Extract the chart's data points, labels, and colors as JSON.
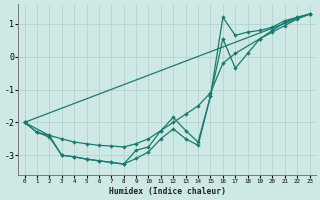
{
  "xlabel": "Humidex (Indice chaleur)",
  "bg_color": "#cde8e5",
  "grid_color": "#afd0cc",
  "line_color": "#1a7a6e",
  "xlim": [
    -0.5,
    23.5
  ],
  "ylim": [
    -3.6,
    1.6
  ],
  "xticks": [
    0,
    1,
    2,
    3,
    4,
    5,
    6,
    7,
    8,
    9,
    10,
    11,
    12,
    13,
    14,
    15,
    16,
    17,
    18,
    19,
    20,
    21,
    22,
    23
  ],
  "yticks": [
    -3,
    -2,
    -1,
    0,
    1
  ],
  "line1_x": [
    0,
    1,
    2,
    3,
    4,
    5,
    6,
    7,
    8,
    9,
    10,
    11,
    12,
    13,
    14,
    15,
    16,
    17,
    19,
    20,
    21,
    22,
    23
  ],
  "line1_y": [
    -2.0,
    -2.3,
    -2.4,
    -2.5,
    -2.6,
    -2.65,
    -2.7,
    -2.72,
    -2.75,
    -2.65,
    -2.5,
    -2.25,
    -2.0,
    -1.75,
    -1.5,
    -1.1,
    -0.2,
    0.1,
    0.55,
    0.75,
    0.95,
    1.15,
    1.3
  ],
  "line2_x": [
    0,
    1,
    2,
    3,
    4,
    5,
    6,
    7,
    8,
    9,
    10,
    11,
    12,
    13,
    14,
    15,
    16,
    17,
    18,
    19,
    20,
    21,
    22,
    23
  ],
  "line2_y": [
    -2.0,
    -2.3,
    -2.45,
    -3.0,
    -3.05,
    -3.12,
    -3.17,
    -3.22,
    -3.27,
    -2.85,
    -2.75,
    -2.25,
    -1.85,
    -2.25,
    -2.6,
    -1.2,
    0.55,
    -0.35,
    0.1,
    0.55,
    0.8,
    1.05,
    1.2,
    1.3
  ],
  "line3_x": [
    0,
    2,
    3,
    4,
    5,
    6,
    7,
    8,
    9,
    10,
    11,
    12,
    13,
    14,
    15,
    16,
    17,
    18,
    19,
    20,
    21,
    22,
    23
  ],
  "line3_y": [
    -2.0,
    -2.4,
    -3.0,
    -3.05,
    -3.12,
    -3.17,
    -3.22,
    -3.27,
    -3.1,
    -2.9,
    -2.5,
    -2.2,
    -2.5,
    -2.7,
    -1.2,
    1.2,
    0.65,
    0.75,
    0.8,
    0.9,
    1.1,
    1.2,
    1.3
  ],
  "line4_x": [
    0,
    23
  ],
  "line4_y": [
    -2.0,
    1.3
  ]
}
